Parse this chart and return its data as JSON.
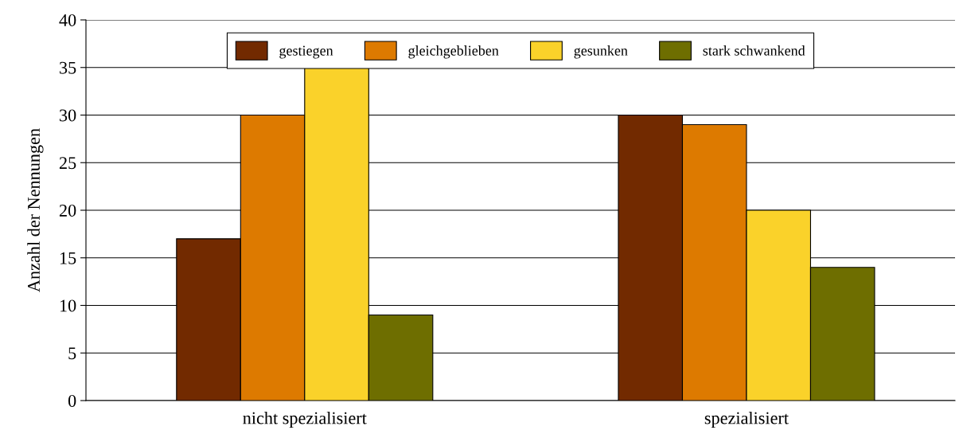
{
  "chart_data": {
    "type": "bar",
    "ylabel": "Anzahl der Nennungen",
    "categories": [
      "nicht spezialisiert",
      "spezialisiert"
    ],
    "series": [
      {
        "name": "gestiegen",
        "color": "#722a00",
        "values": [
          17,
          30
        ]
      },
      {
        "name": "gleichgeblieben",
        "color": "#dd7a00",
        "values": [
          30,
          29
        ]
      },
      {
        "name": "gesunken",
        "color": "#fad22a",
        "values": [
          35,
          20
        ]
      },
      {
        "name": "stark schwankend",
        "color": "#6e6e00",
        "values": [
          9,
          14
        ]
      }
    ],
    "ylim": [
      0,
      40
    ],
    "yticks": [
      0,
      5,
      10,
      15,
      20,
      25,
      30,
      35,
      40
    ],
    "grid": "y",
    "legend": "top"
  }
}
